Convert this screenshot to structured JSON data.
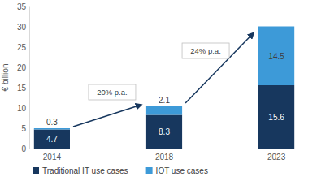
{
  "chart_data": {
    "type": "bar",
    "stacked": true,
    "data_labels": true,
    "grid": false,
    "legend": "bottom",
    "y_label": "€ billion",
    "categories": [
      "2014",
      "2018",
      "2023"
    ],
    "series": [
      {
        "name": "Traditional IT use cases",
        "color": "#17375e",
        "values": [
          4.7,
          8.3,
          15.6
        ]
      },
      {
        "name": "IOT use cases",
        "color": "#3d9ad8",
        "values": [
          0.3,
          2.1,
          14.5
        ]
      }
    ],
    "ylim": [
      0,
      35
    ],
    "yticks": [
      0,
      5,
      10,
      15,
      20,
      25,
      30,
      35
    ],
    "annotations": [
      "20% p.a.",
      "24% p.a."
    ]
  }
}
